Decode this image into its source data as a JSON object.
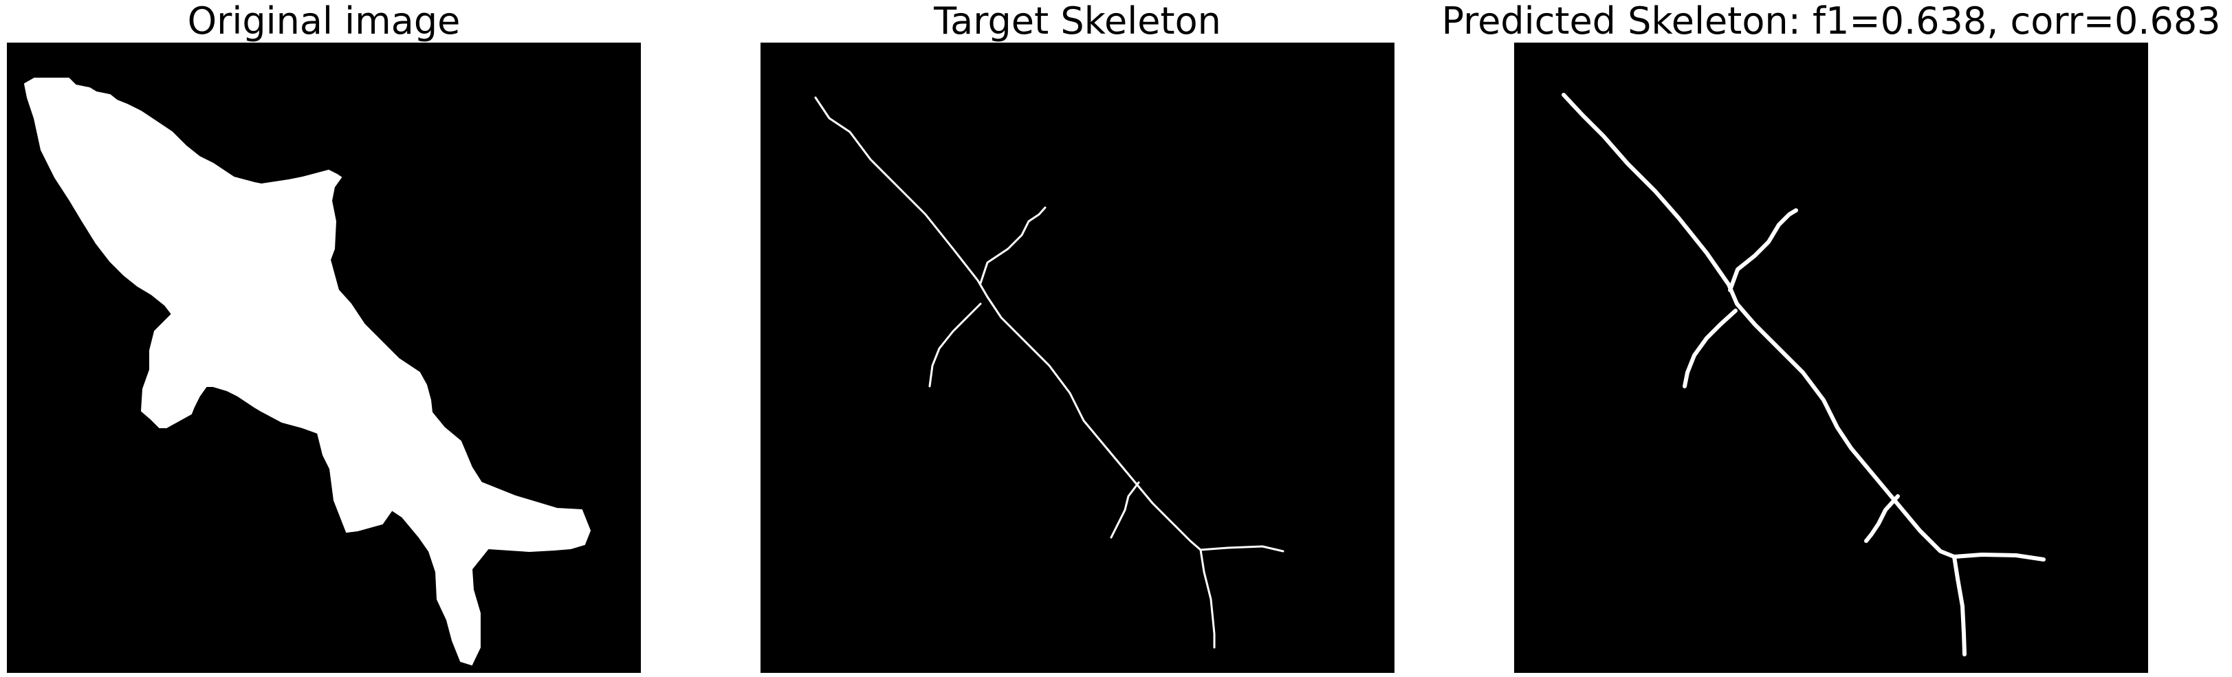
{
  "figure": {
    "panels": [
      {
        "title": "Original image"
      },
      {
        "title": "Target Skeleton"
      },
      {
        "title": "Predicted Skeleton: f1=0.638, corr=0.683"
      }
    ]
  }
}
